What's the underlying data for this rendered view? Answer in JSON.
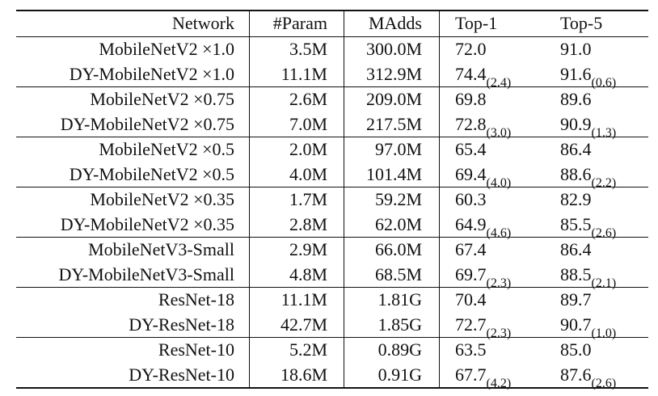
{
  "table": {
    "header": [
      "Network",
      "#Param",
      "MAdds",
      "Top-1",
      "Top-5"
    ],
    "groups": [
      {
        "rows": [
          [
            "MobileNetV2 ×1.0",
            "3.5M",
            "300.0M",
            {
              "main": "72.0"
            },
            {
              "main": "91.0"
            }
          ],
          [
            "DY-MobileNetV2 ×1.0",
            "11.1M",
            "312.9M",
            {
              "main": "74.4",
              "sub": "(2.4)"
            },
            {
              "main": "91.6",
              "sub": "(0.6)"
            }
          ]
        ]
      },
      {
        "rows": [
          [
            "MobileNetV2 ×0.75",
            "2.6M",
            "209.0M",
            {
              "main": "69.8"
            },
            {
              "main": "89.6"
            }
          ],
          [
            "DY-MobileNetV2 ×0.75",
            "7.0M",
            "217.5M",
            {
              "main": "72.8",
              "sub": "(3.0)"
            },
            {
              "main": "90.9",
              "sub": "(1.3)"
            }
          ]
        ]
      },
      {
        "rows": [
          [
            "MobileNetV2 ×0.5",
            "2.0M",
            "97.0M",
            {
              "main": "65.4"
            },
            {
              "main": "86.4"
            }
          ],
          [
            "DY-MobileNetV2 ×0.5",
            "4.0M",
            "101.4M",
            {
              "main": "69.4",
              "sub": "(4.0)"
            },
            {
              "main": "88.6",
              "sub": "(2.2)"
            }
          ]
        ]
      },
      {
        "rows": [
          [
            "MobileNetV2 ×0.35",
            "1.7M",
            "59.2M",
            {
              "main": "60.3"
            },
            {
              "main": "82.9"
            }
          ],
          [
            "DY-MobileNetV2 ×0.35",
            "2.8M",
            "62.0M",
            {
              "main": "64.9",
              "sub": "(4.6)"
            },
            {
              "main": "85.5",
              "sub": "(2.6)"
            }
          ]
        ]
      },
      {
        "rows": [
          [
            "MobileNetV3-Small",
            "2.9M",
            "66.0M",
            {
              "main": "67.4"
            },
            {
              "main": "86.4"
            }
          ],
          [
            "DY-MobileNetV3-Small",
            "4.8M",
            "68.5M",
            {
              "main": "69.7",
              "sub": "(2.3)"
            },
            {
              "main": "88.5",
              "sub": "(2.1)"
            }
          ]
        ]
      },
      {
        "rows": [
          [
            "ResNet-18",
            "11.1M",
            "1.81G",
            {
              "main": "70.4"
            },
            {
              "main": "89.7"
            }
          ],
          [
            "DY-ResNet-18",
            "42.7M",
            "1.85G",
            {
              "main": "72.7",
              "sub": "(2.3)"
            },
            {
              "main": "90.7",
              "sub": "(1.0)"
            }
          ]
        ]
      },
      {
        "rows": [
          [
            "ResNet-10",
            "5.2M",
            "0.89G",
            {
              "main": "63.5"
            },
            {
              "main": "85.0"
            }
          ],
          [
            "DY-ResNet-10",
            "18.6M",
            "0.91G",
            {
              "main": "67.7",
              "sub": "(4.2)"
            },
            {
              "main": "87.6",
              "sub": "(2.6)"
            }
          ]
        ]
      }
    ]
  }
}
